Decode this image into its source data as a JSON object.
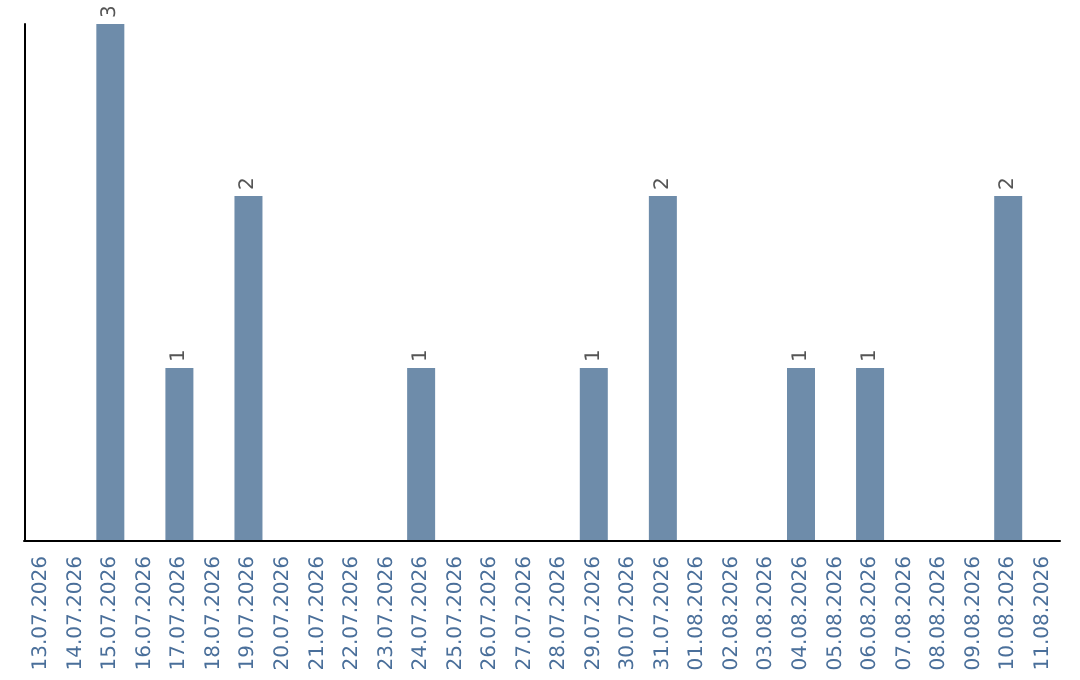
{
  "chart_data": {
    "type": "bar",
    "categories": [
      "13.07.2026",
      "14.07.2026",
      "15.07.2026",
      "16.07.2026",
      "17.07.2026",
      "18.07.2026",
      "19.07.2026",
      "20.07.2026",
      "21.07.2026",
      "22.07.2026",
      "23.07.2026",
      "24.07.2026",
      "25.07.2026",
      "26.07.2026",
      "27.07.2026",
      "28.07.2026",
      "29.07.2026",
      "30.07.2026",
      "31.07.2026",
      "01.08.2026",
      "02.08.2026",
      "03.08.2026",
      "04.08.2026",
      "05.08.2026",
      "06.08.2026",
      "07.08.2026",
      "08.08.2026",
      "09.08.2026",
      "10.08.2026",
      "11.08.2026"
    ],
    "values": [
      0,
      0,
      3,
      0,
      1,
      0,
      2,
      0,
      0,
      0,
      0,
      1,
      0,
      0,
      0,
      0,
      1,
      0,
      2,
      0,
      0,
      0,
      1,
      0,
      1,
      0,
      0,
      0,
      2,
      0
    ],
    "value_labels": [
      null,
      null,
      "3",
      null,
      "1",
      null,
      "2",
      null,
      null,
      null,
      null,
      "1",
      null,
      null,
      null,
      null,
      "1",
      null,
      "2",
      null,
      null,
      null,
      "1",
      null,
      "1",
      null,
      null,
      null,
      "2",
      null
    ],
    "color": "#6e8caa",
    "grid": false,
    "tick_labels": "x"
  }
}
